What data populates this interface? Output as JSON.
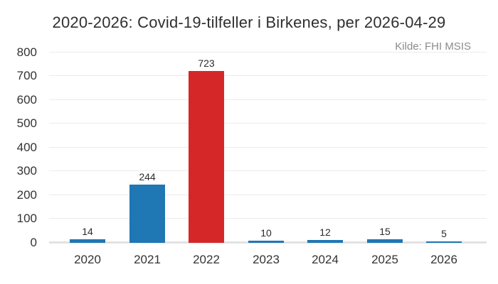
{
  "source": "Kilde: FHI MSIS",
  "chart_data": {
    "type": "bar",
    "title": "2020-2026: Covid-19-tilfeller i Birkenes, per 2026-04-29",
    "categories": [
      "2020",
      "2021",
      "2022",
      "2023",
      "2024",
      "2025",
      "2026"
    ],
    "values": [
      14,
      244,
      723,
      10,
      12,
      15,
      5
    ],
    "value_labels": [
      "14",
      "244",
      "723",
      "10",
      "12",
      "15",
      "5"
    ],
    "bar_colors": [
      "#1f77b4",
      "#1f77b4",
      "#d62728",
      "#1f77b4",
      "#1f77b4",
      "#1f77b4",
      "#1f77b4"
    ],
    "default_bar_color": "#1f77b4",
    "highlight": {
      "category": "2022",
      "color": "#d62728"
    },
    "xlabel": "",
    "ylabel": "",
    "ylim": [
      0,
      800
    ],
    "yticks": [
      0,
      100,
      200,
      300,
      400,
      500,
      600,
      700,
      800
    ],
    "grid": "horizontal",
    "legend": "none",
    "annotation": "Kilde: FHI MSIS"
  }
}
